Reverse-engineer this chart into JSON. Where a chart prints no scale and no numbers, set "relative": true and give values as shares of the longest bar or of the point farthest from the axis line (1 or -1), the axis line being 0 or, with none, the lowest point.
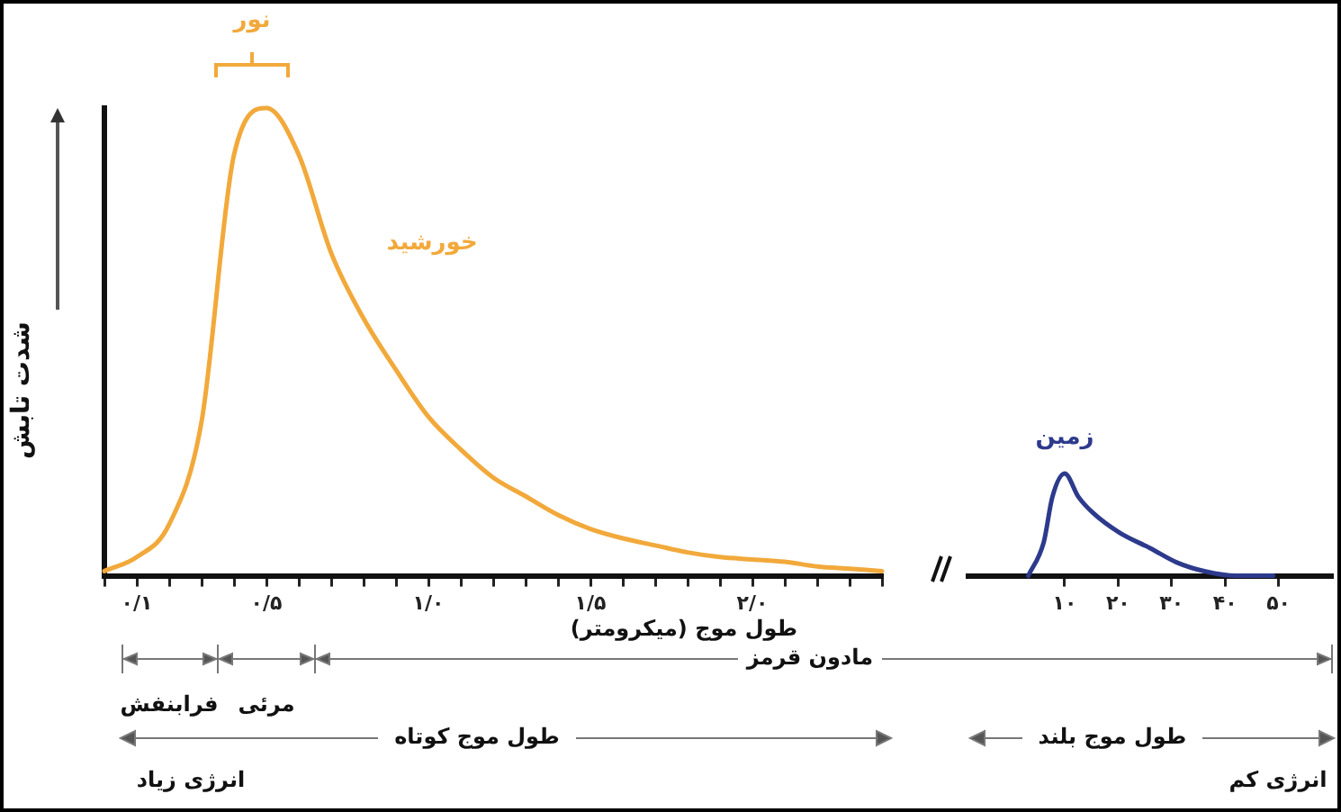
{
  "chart_data": [
    {
      "type": "line",
      "xlabel": "طول موج (میکرومتر)",
      "ylabel": "شدت تابش",
      "relative": true,
      "annotations": [
        "نور",
        "فرابنفش",
        "مرئی",
        "مادون قرمز",
        "طول موج کوتاه",
        "طول موج بلند",
        "انرژی زیاد",
        "انرژی کم"
      ],
      "categories": [
        null,
        "۰/۱",
        null,
        null,
        null,
        "۰/۵",
        null,
        null,
        null,
        null,
        "۱/۰",
        null,
        null,
        null,
        null,
        "۱/۵",
        null,
        null,
        null,
        null,
        "۲/۰",
        null,
        null,
        null,
        null
      ],
      "series": [
        {
          "name": "خورشید",
          "color": "#f2a93b",
          "values": [
            0.01,
            0.04,
            0.11,
            0.33,
            0.9,
            1,
            0.9,
            0.69,
            0.55,
            0.44,
            0.34,
            0.27,
            0.21,
            0.17,
            0.13,
            0.1,
            0.08,
            0.065,
            0.05,
            0.04,
            0.035,
            0.03,
            0.02,
            0.015,
            0.01
          ]
        }
      ]
    },
    {
      "type": "line",
      "relative": true,
      "xlim": [
        -8,
        60
      ],
      "xticks": [
        {
          "value": 10,
          "label": "۱۰"
        },
        {
          "value": 20,
          "label": "۲۰"
        },
        {
          "value": 30,
          "label": "۳۰"
        },
        {
          "value": 40,
          "label": "۴۰"
        },
        {
          "value": 50,
          "label": "۵۰"
        }
      ],
      "series": [
        {
          "name": "زمین",
          "color": "#2d3a8c",
          "x": [
            3.2,
            6.1,
            7.7,
            10,
            12.6,
            15.2,
            20.3,
            26,
            31,
            36.5,
            42,
            49
          ],
          "values": [
            0,
            0.33,
            0.77,
            1,
            0.77,
            0.62,
            0.42,
            0.27,
            0.13,
            0.04,
            0,
            0
          ]
        }
      ]
    }
  ]
}
